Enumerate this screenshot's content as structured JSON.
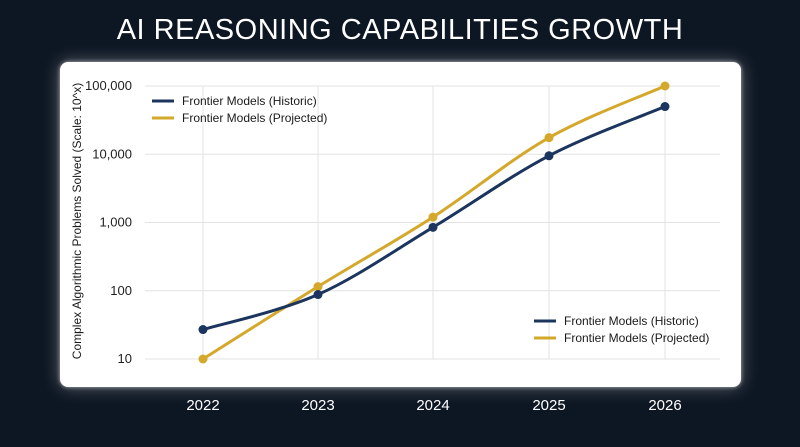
{
  "chart_data": {
    "type": "line",
    "title": "AI REASONING CAPABILITIES GROWTH",
    "ylabel": "Complex Algorithmic Problems Solved (Scale: 10^x)",
    "xlabel": "",
    "yscale": "log",
    "ylim": [
      10,
      100000
    ],
    "categories": [
      "2022",
      "2023",
      "2024",
      "2025",
      "2026"
    ],
    "ytick_labels": [
      "10",
      "100",
      "1,000",
      "10,000",
      "100,000"
    ],
    "ytick_values": [
      10,
      100,
      1000,
      10000,
      100000
    ],
    "grid": true,
    "legend_entries": [
      "Frontier Models (Historic)",
      "Frontier Models (Projected)"
    ],
    "legend_placement": [
      "top-left",
      "bottom-right"
    ],
    "series": [
      {
        "name": "Frontier Models (Historic)",
        "color": "#1b355e",
        "values": [
          27,
          88,
          850,
          9500,
          50000
        ]
      },
      {
        "name": "Frontier Models (Projected)",
        "color": "#d4a82a",
        "values": [
          10,
          115,
          1200,
          17500,
          100000
        ]
      }
    ]
  }
}
